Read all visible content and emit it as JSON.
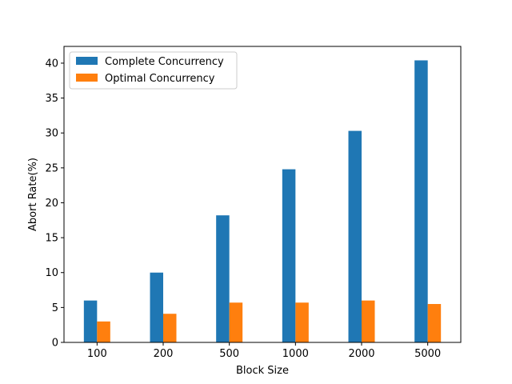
{
  "chart_data": {
    "type": "bar",
    "title": "",
    "xlabel": "Block Size",
    "ylabel": "Abort Rate(%)",
    "categories": [
      "100",
      "200",
      "500",
      "1000",
      "2000",
      "5000"
    ],
    "series": [
      {
        "name": "Complete Concurrency",
        "color": "#1f77b4",
        "values": [
          6.0,
          10.0,
          18.2,
          24.8,
          30.3,
          40.4
        ]
      },
      {
        "name": "Optimal Concurrency",
        "color": "#ff7f0e",
        "values": [
          3.0,
          4.1,
          5.7,
          5.7,
          6.0,
          5.5
        ]
      }
    ],
    "ylim": [
      0,
      42.4
    ],
    "yticks": [
      0,
      5,
      10,
      15,
      20,
      25,
      30,
      35,
      40
    ],
    "ytick_labels": [
      "0",
      "5",
      "10",
      "15",
      "20",
      "25",
      "30",
      "35",
      "40"
    ],
    "legend_position": "upper-left",
    "grid": false
  }
}
